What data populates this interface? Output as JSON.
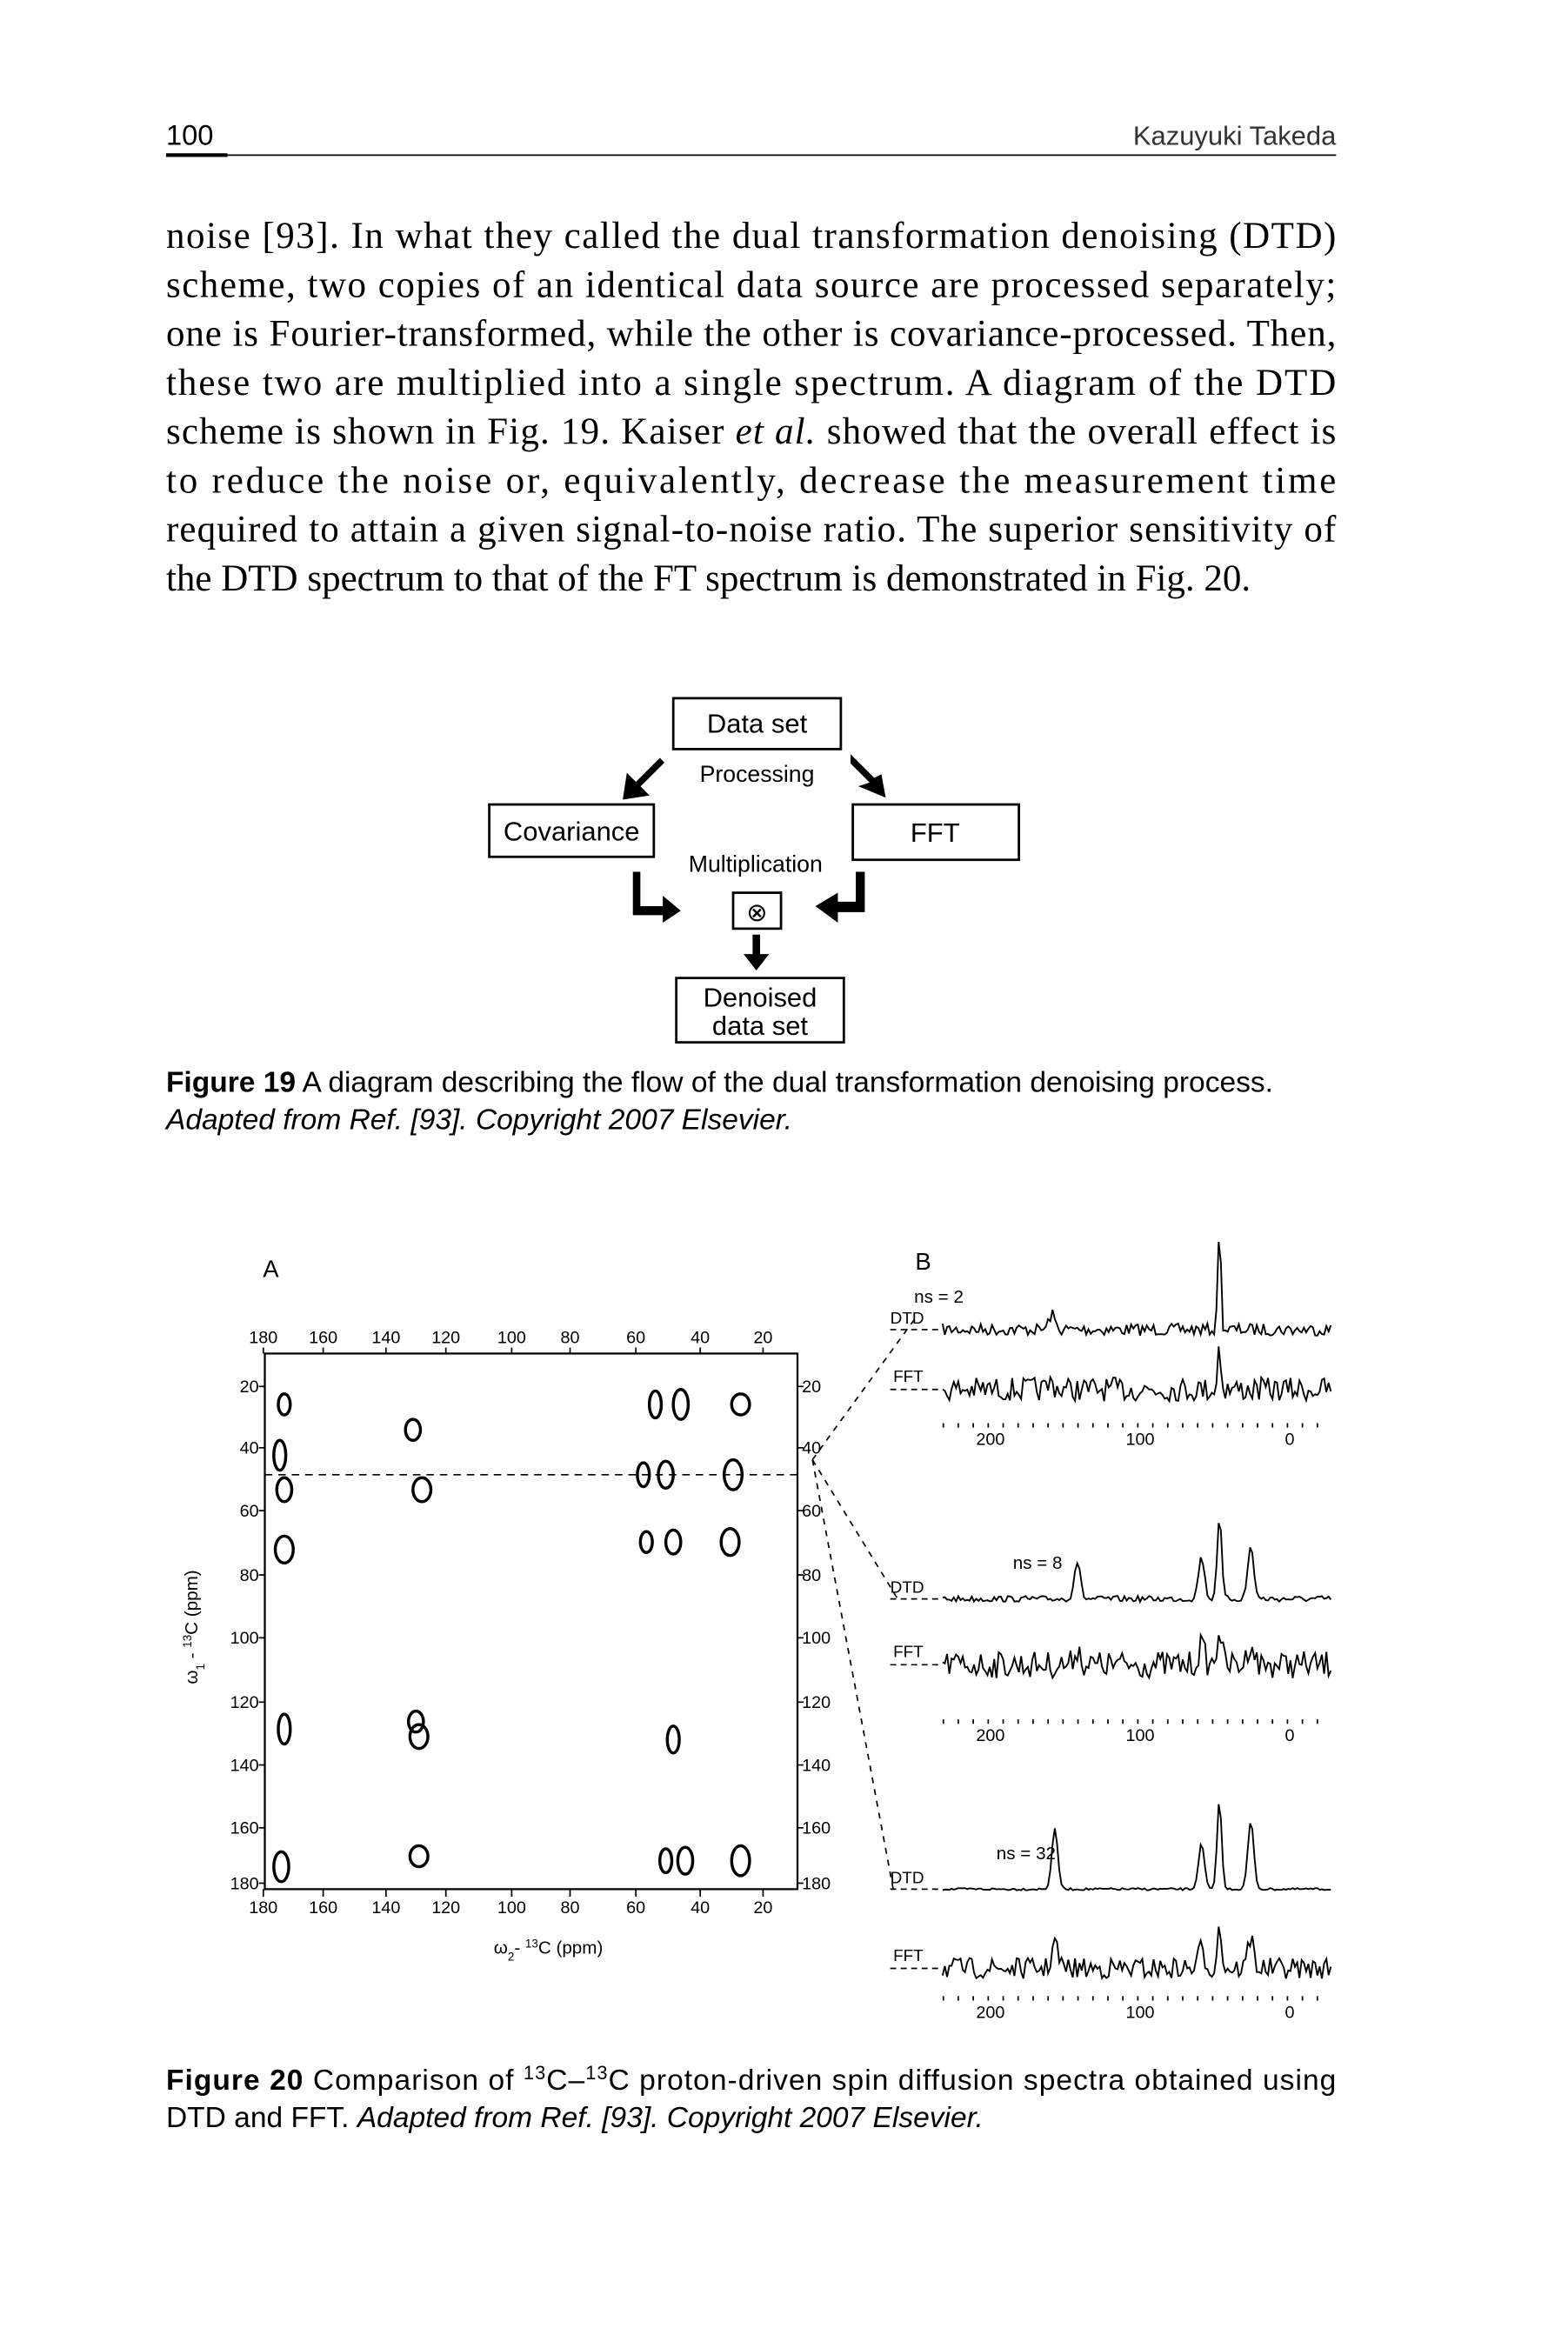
{
  "header": {
    "page_number": "100",
    "running_title": "Kazuyuki Takeda"
  },
  "body": {
    "lines": [
      "noise [93]. In what they called the dual transformation denoising (DTD)",
      "scheme, two copies of an identical data source are processed separately;",
      "one is Fourier-transformed, while the other is covariance-processed. Then,",
      "these two are multiplied into a single spectrum. A diagram of the DTD",
      [
        "scheme is shown in Fig. 19. Kaiser ",
        "et al.",
        " showed that the overall effect is"
      ],
      "to reduce the noise or, equivalently, decrease the measurement time",
      "required to attain a given signal-to-noise ratio. The superior sensitivity of",
      "the DTD spectrum to that of the FT spectrum is demonstrated in Fig. 20."
    ]
  },
  "figure_19": {
    "nodes": {
      "data_set": "Data set",
      "covariance": "Covariance",
      "fft": "FFT",
      "multiply": "⊗",
      "denoised": [
        "Denoised",
        "data set"
      ]
    },
    "edges": {
      "processing": "Processing",
      "multiplication": "Multiplication"
    },
    "caption": {
      "label": "Figure 19",
      "text": " A diagram describing the flow of the dual transformation denoising process.",
      "credit": "Adapted from Ref. [93]. Copyright 2007 Elsevier."
    }
  },
  "figure_20": {
    "panel_a": {
      "label": "A",
      "top_ticks": [
        180,
        160,
        140,
        120,
        100,
        80,
        60,
        40,
        20
      ],
      "bottom_ticks": [
        180,
        160,
        140,
        120,
        100,
        80,
        60,
        40,
        20
      ],
      "left_ticks": [
        20,
        40,
        60,
        80,
        100,
        120,
        140,
        160,
        180
      ],
      "right_ticks": [
        20,
        40,
        60,
        80,
        100,
        120,
        140,
        160,
        180
      ],
      "x_label": [
        "ω",
        "2",
        "- ",
        "13",
        "C (ppm)"
      ],
      "y_label": [
        "ω",
        "1",
        " - ",
        "13",
        "C (ppm)"
      ]
    },
    "panel_b": {
      "label": "B",
      "groups": [
        {
          "ns": "ns = 2",
          "dtd": "DTD",
          "fft": "FFT",
          "ticks": [
            200,
            100,
            0
          ]
        },
        {
          "ns": "ns = 8",
          "dtd": "DTD",
          "fft": "FFT",
          "ticks": [
            200,
            100,
            0
          ]
        },
        {
          "ns": "ns = 32",
          "dtd": "DTD",
          "fft": "FFT",
          "ticks": [
            200,
            100,
            0
          ]
        }
      ]
    },
    "caption": {
      "line1": [
        "Figure 20",
        " Comparison of ",
        "13",
        "C–",
        "13",
        "C proton-driven spin diffusion spectra obtained using"
      ],
      "line2": [
        "DTD and FFT. ",
        "Adapted from Ref. [93]. Copyright 2007 Elsevier."
      ]
    }
  }
}
